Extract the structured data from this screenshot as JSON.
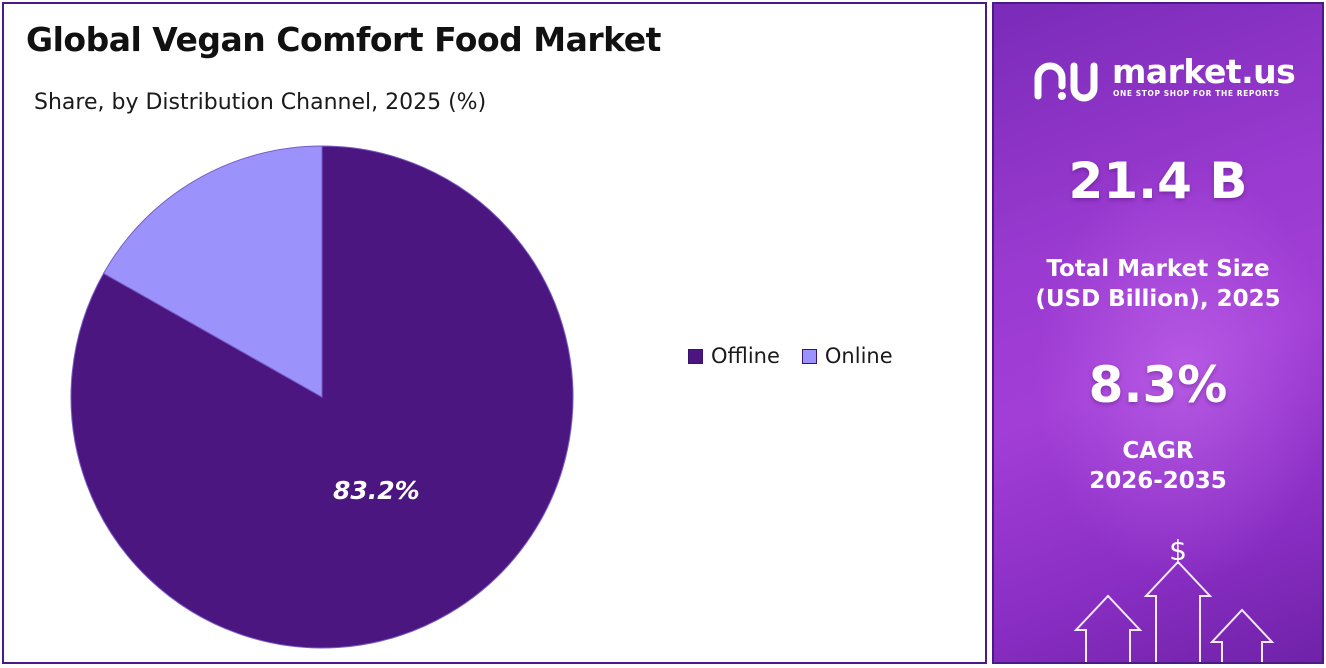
{
  "chart": {
    "title": "Global Vegan Comfort Food Market",
    "subtitle": "Share, by Distribution Channel, 2025 (%)"
  },
  "chart_data": {
    "type": "pie",
    "title": "Global Vegan Comfort Food Market",
    "subtitle": "Share, by Distribution Channel, 2025 (%)",
    "categories": [
      "Offline",
      "Online"
    ],
    "values": [
      83.2,
      16.8
    ],
    "data_labels": [
      "83.2%",
      ""
    ],
    "colors": [
      "#4b1680",
      "#9b93fb"
    ],
    "legend_position": "right"
  },
  "legend": {
    "items": [
      {
        "label": "Offline",
        "color": "#4b1680"
      },
      {
        "label": "Online",
        "color": "#9b93fb"
      }
    ]
  },
  "side_panel": {
    "logo_text": "market.us",
    "logo_tagline": "ONE STOP SHOP FOR THE REPORTS",
    "market_size_value": "21.4 B",
    "market_size_label_line1": "Total Market Size",
    "market_size_label_line2": "(USD Billion), 2025",
    "cagr_value": "8.3%",
    "cagr_label_line1": "CAGR",
    "cagr_label_line2": "2026-2035",
    "currency_symbol": "$"
  }
}
